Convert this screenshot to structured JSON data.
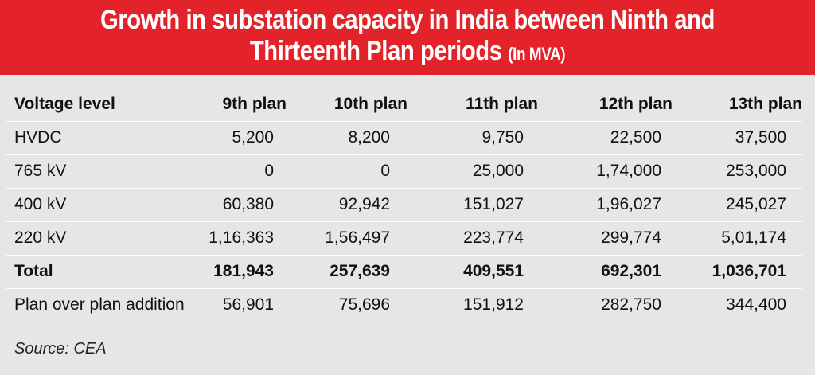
{
  "title": {
    "line1": "Growth in substation capacity in India between Ninth and",
    "line2": "Thirteenth Plan periods",
    "unit": "(In MVA)"
  },
  "colors": {
    "header_bg": "#e3222a",
    "body_bg": "#e6e6e6",
    "rule": "#ffffff"
  },
  "table": {
    "headers": [
      "Voltage level",
      "9th plan",
      "10th plan",
      "11th plan",
      "12th plan",
      "13th plan"
    ],
    "rows": [
      {
        "label": "HVDC",
        "values": [
          "5,200",
          "8,200",
          "9,750",
          "22,500",
          "37,500"
        ]
      },
      {
        "label": "765 kV",
        "values": [
          "0",
          "0",
          "25,000",
          "1,74,000",
          "253,000"
        ]
      },
      {
        "label": "400 kV",
        "values": [
          "60,380",
          "92,942",
          "151,027",
          "1,96,027",
          "245,027"
        ]
      },
      {
        "label": "220 kV",
        "values": [
          "1,16,363",
          "1,56,497",
          "223,774",
          "299,774",
          "5,01,174"
        ]
      },
      {
        "label": "Total",
        "values": [
          "181,943",
          "257,639",
          "409,551",
          "692,301",
          "1,036,701"
        ]
      },
      {
        "label": "Plan over plan addition",
        "values": [
          "56,901",
          "75,696",
          "151,912",
          "282,750",
          "344,400"
        ]
      }
    ]
  },
  "source": "Source: CEA"
}
